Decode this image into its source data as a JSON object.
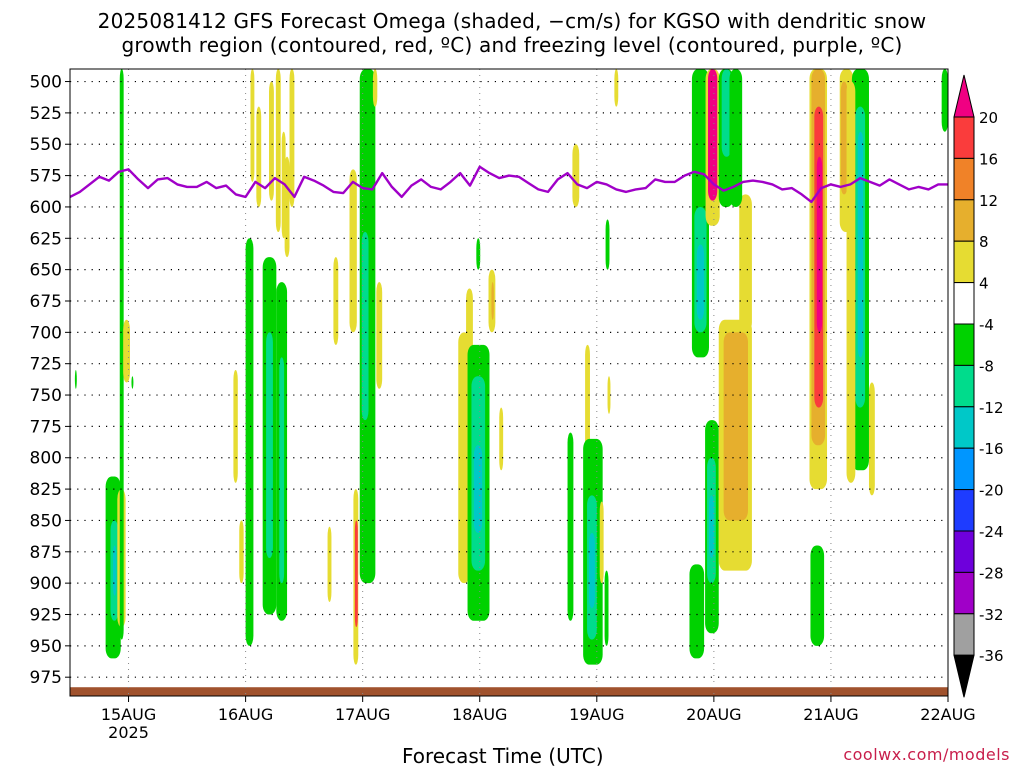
{
  "title_line1": "2025081412 GFS Forecast Omega (shaded, −cm/s) for KGSO with dendritic snow",
  "title_line2": "growth region (contoured, red, ºC) and freezing level (contoured, purple, ºC)",
  "credit": "coolwx.com/models",
  "chart_data": {
    "type": "heatmap",
    "xlabel": "Forecast Time (UTC)",
    "ylabel": "",
    "x_unit": "hours since 2025-08-14 12Z",
    "x_range": [
      0,
      180
    ],
    "x_ticks": [
      {
        "x": 12,
        "label": "15AUG",
        "sub": "2025"
      },
      {
        "x": 36,
        "label": "16AUG",
        "sub": ""
      },
      {
        "x": 60,
        "label": "17AUG",
        "sub": ""
      },
      {
        "x": 84,
        "label": "18AUG",
        "sub": ""
      },
      {
        "x": 108,
        "label": "19AUG",
        "sub": ""
      },
      {
        "x": 132,
        "label": "20AUG",
        "sub": ""
      },
      {
        "x": 156,
        "label": "21AUG",
        "sub": ""
      },
      {
        "x": 180,
        "label": "22AUG",
        "sub": ""
      }
    ],
    "y_levels": [
      500,
      525,
      550,
      575,
      600,
      625,
      650,
      675,
      700,
      725,
      750,
      775,
      800,
      825,
      850,
      875,
      900,
      925,
      950,
      975
    ],
    "y_range": [
      490,
      990
    ],
    "y_inverted": true,
    "grid": true,
    "colorbar": {
      "boundaries": [
        -36,
        -32,
        -28,
        -24,
        -20,
        -16,
        -12,
        -8,
        -4,
        4,
        8,
        12,
        16,
        20
      ],
      "labels": [
        "20",
        "16",
        "12",
        "8",
        "4",
        "-4",
        "-8",
        "-12",
        "-16",
        "-20",
        "-24",
        "-28",
        "-32",
        "-36"
      ],
      "colors": [
        "#000000",
        "#a0a0a0",
        "#a000c8",
        "#6e00dc",
        "#1e3cff",
        "#0096ff",
        "#00c8c8",
        "#00dc8c",
        "#00d200",
        "#ffffff",
        "#e6dc32",
        "#e6af2d",
        "#f08228",
        "#fa3c3c",
        "#f00082"
      ]
    },
    "shaded_regions": [
      {
        "t0": 7.3,
        "t1": 10.4,
        "p0": 815,
        "p1": 960,
        "color": "#00d200"
      },
      {
        "t0": 8.3,
        "t1": 9.9,
        "p0": 850,
        "p1": 930,
        "color": "#00dc8c"
      },
      {
        "t0": 8.8,
        "t1": 9.5,
        "p0": 870,
        "p1": 910,
        "color": "#00c8c8"
      },
      {
        "t0": 9.7,
        "t1": 11.4,
        "p0": 825,
        "p1": 935,
        "color": "#e6dc32"
      },
      {
        "t0": 10.2,
        "t1": 11.0,
        "p0": 490,
        "p1": 945,
        "color": "#00d200"
      },
      {
        "t0": 10.9,
        "t1": 12.3,
        "p0": 690,
        "p1": 740,
        "color": "#e6dc32"
      },
      {
        "t0": 12.6,
        "t1": 13.0,
        "p0": 735,
        "p1": 745,
        "color": "#00d200"
      },
      {
        "t0": 1.0,
        "t1": 1.4,
        "p0": 730,
        "p1": 745,
        "color": "#00d200"
      },
      {
        "t0": 37.0,
        "t1": 37.8,
        "p0": 490,
        "p1": 580,
        "color": "#e6dc32"
      },
      {
        "t0": 38.2,
        "t1": 39.2,
        "p0": 520,
        "p1": 600,
        "color": "#e6dc32"
      },
      {
        "t0": 40.8,
        "t1": 41.8,
        "p0": 500,
        "p1": 595,
        "color": "#e6dc32"
      },
      {
        "t0": 42.2,
        "t1": 43.2,
        "p0": 490,
        "p1": 620,
        "color": "#e6dc32"
      },
      {
        "t0": 43.4,
        "t1": 44.2,
        "p0": 540,
        "p1": 625,
        "color": "#e6dc32"
      },
      {
        "t0": 44.0,
        "t1": 45.0,
        "p0": 560,
        "p1": 640,
        "color": "#e6dc32"
      },
      {
        "t0": 36.0,
        "t1": 37.6,
        "p0": 625,
        "p1": 950,
        "color": "#00d200"
      },
      {
        "t0": 39.5,
        "t1": 42.3,
        "p0": 640,
        "p1": 925,
        "color": "#00d200"
      },
      {
        "t0": 40.2,
        "t1": 41.6,
        "p0": 700,
        "p1": 880,
        "color": "#00dc8c"
      },
      {
        "t0": 42.3,
        "t1": 44.5,
        "p0": 660,
        "p1": 930,
        "color": "#00d200"
      },
      {
        "t0": 42.9,
        "t1": 43.9,
        "p0": 720,
        "p1": 900,
        "color": "#00dc8c"
      },
      {
        "t0": 33.5,
        "t1": 34.4,
        "p0": 730,
        "p1": 820,
        "color": "#e6dc32"
      },
      {
        "t0": 34.7,
        "t1": 35.6,
        "p0": 850,
        "p1": 900,
        "color": "#e6dc32"
      },
      {
        "t0": 45.0,
        "t1": 46.0,
        "p0": 490,
        "p1": 600,
        "color": "#e6dc32"
      },
      {
        "t0": 57.3,
        "t1": 58.8,
        "p0": 570,
        "p1": 700,
        "color": "#e6dc32"
      },
      {
        "t0": 58.1,
        "t1": 59.1,
        "p0": 825,
        "p1": 965,
        "color": "#e6dc32"
      },
      {
        "t0": 58.4,
        "t1": 59.0,
        "p0": 850,
        "p1": 935,
        "color": "#fa3c3c"
      },
      {
        "t0": 59.4,
        "t1": 62.6,
        "p0": 490,
        "p1": 900,
        "color": "#00d200"
      },
      {
        "t0": 59.8,
        "t1": 61.2,
        "p0": 620,
        "p1": 770,
        "color": "#00dc8c"
      },
      {
        "t0": 62.1,
        "t1": 63.0,
        "p0": 490,
        "p1": 520,
        "color": "#e6dc32"
      },
      {
        "t0": 62.8,
        "t1": 64.0,
        "p0": 660,
        "p1": 745,
        "color": "#e6dc32"
      },
      {
        "t0": 54.0,
        "t1": 55.0,
        "p0": 640,
        "p1": 710,
        "color": "#e6dc32"
      },
      {
        "t0": 52.8,
        "t1": 53.6,
        "p0": 855,
        "p1": 915,
        "color": "#e6dc32"
      },
      {
        "t0": 79.6,
        "t1": 82.0,
        "p0": 700,
        "p1": 900,
        "color": "#e6dc32"
      },
      {
        "t0": 81.2,
        "t1": 82.6,
        "p0": 665,
        "p1": 770,
        "color": "#e6dc32"
      },
      {
        "t0": 81.5,
        "t1": 86.0,
        "p0": 710,
        "p1": 930,
        "color": "#00d200"
      },
      {
        "t0": 82.3,
        "t1": 85.1,
        "p0": 735,
        "p1": 890,
        "color": "#00dc8c"
      },
      {
        "t0": 82.8,
        "t1": 84.5,
        "p0": 790,
        "p1": 860,
        "color": "#00c8c8"
      },
      {
        "t0": 85.8,
        "t1": 87.2,
        "p0": 650,
        "p1": 700,
        "color": "#e6dc32"
      },
      {
        "t0": 86.4,
        "t1": 86.9,
        "p0": 660,
        "p1": 690,
        "color": "#e6af2d"
      },
      {
        "t0": 88.0,
        "t1": 88.8,
        "p0": 760,
        "p1": 810,
        "color": "#e6dc32"
      },
      {
        "t0": 83.3,
        "t1": 84.1,
        "p0": 625,
        "p1": 650,
        "color": "#00d200"
      },
      {
        "t0": 103.0,
        "t1": 104.4,
        "p0": 550,
        "p1": 600,
        "color": "#e6dc32"
      },
      {
        "t0": 105.6,
        "t1": 106.6,
        "p0": 710,
        "p1": 840,
        "color": "#e6dc32"
      },
      {
        "t0": 102.0,
        "t1": 103.2,
        "p0": 780,
        "p1": 930,
        "color": "#00d200"
      },
      {
        "t0": 105.2,
        "t1": 109.2,
        "p0": 785,
        "p1": 965,
        "color": "#00d200"
      },
      {
        "t0": 106.0,
        "t1": 108.0,
        "p0": 830,
        "p1": 945,
        "color": "#00dc8c"
      },
      {
        "t0": 106.4,
        "t1": 107.6,
        "p0": 860,
        "p1": 920,
        "color": "#00c8c8"
      },
      {
        "t0": 108.6,
        "t1": 109.4,
        "p0": 835,
        "p1": 900,
        "color": "#e6dc32"
      },
      {
        "t0": 109.8,
        "t1": 110.6,
        "p0": 610,
        "p1": 650,
        "color": "#00d200"
      },
      {
        "t0": 109.6,
        "t1": 110.4,
        "p0": 890,
        "p1": 950,
        "color": "#00d200"
      },
      {
        "t0": 110.2,
        "t1": 110.8,
        "p0": 735,
        "p1": 765,
        "color": "#e6dc32"
      },
      {
        "t0": 111.6,
        "t1": 112.4,
        "p0": 490,
        "p1": 520,
        "color": "#e6dc32"
      },
      {
        "t0": 127.5,
        "t1": 131.0,
        "p0": 480,
        "p1": 720,
        "color": "#00d200"
      },
      {
        "t0": 128.0,
        "t1": 130.5,
        "p0": 600,
        "p1": 700,
        "color": "#00dc8c"
      },
      {
        "t0": 128.5,
        "t1": 130.0,
        "p0": 630,
        "p1": 690,
        "color": "#00c8c8"
      },
      {
        "t0": 130.3,
        "t1": 133.2,
        "p0": 490,
        "p1": 615,
        "color": "#e6dc32"
      },
      {
        "t0": 130.8,
        "t1": 132.7,
        "p0": 490,
        "p1": 595,
        "color": "#f00082"
      },
      {
        "t0": 133.0,
        "t1": 136.0,
        "p0": 490,
        "p1": 600,
        "color": "#00d200"
      },
      {
        "t0": 133.6,
        "t1": 135.6,
        "p0": 490,
        "p1": 560,
        "color": "#00dc8c"
      },
      {
        "t0": 127.0,
        "t1": 130.0,
        "p0": 885,
        "p1": 960,
        "color": "#00d200"
      },
      {
        "t0": 130.2,
        "t1": 133.0,
        "p0": 770,
        "p1": 940,
        "color": "#00d200"
      },
      {
        "t0": 130.6,
        "t1": 132.4,
        "p0": 800,
        "p1": 900,
        "color": "#00dc8c"
      },
      {
        "t0": 131.0,
        "t1": 132.0,
        "p0": 830,
        "p1": 880,
        "color": "#00c8c8"
      },
      {
        "t0": 133.0,
        "t1": 139.8,
        "p0": 690,
        "p1": 890,
        "color": "#e6dc32"
      },
      {
        "t0": 134.0,
        "t1": 139.0,
        "p0": 700,
        "p1": 850,
        "color": "#e6af2d"
      },
      {
        "t0": 137.2,
        "t1": 139.8,
        "p0": 590,
        "p1": 700,
        "color": "#e6dc32"
      },
      {
        "t0": 135.2,
        "t1": 137.8,
        "p0": 490,
        "p1": 600,
        "color": "#00d200"
      },
      {
        "t0": 151.6,
        "t1": 155.2,
        "p0": 490,
        "p1": 825,
        "color": "#e6dc32"
      },
      {
        "t0": 152.0,
        "t1": 154.8,
        "p0": 490,
        "p1": 790,
        "color": "#e6af2d"
      },
      {
        "t0": 152.6,
        "t1": 154.4,
        "p0": 520,
        "p1": 760,
        "color": "#fa3c3c"
      },
      {
        "t0": 153.1,
        "t1": 154.2,
        "p0": 560,
        "p1": 700,
        "color": "#f00082"
      },
      {
        "t0": 151.8,
        "t1": 154.6,
        "p0": 870,
        "p1": 950,
        "color": "#00d200"
      },
      {
        "t0": 157.8,
        "t1": 160.6,
        "p0": 490,
        "p1": 620,
        "color": "#e6dc32"
      },
      {
        "t0": 158.0,
        "t1": 159.4,
        "p0": 500,
        "p1": 590,
        "color": "#e6af2d"
      },
      {
        "t0": 160.3,
        "t1": 163.8,
        "p0": 490,
        "p1": 810,
        "color": "#00d200"
      },
      {
        "t0": 161.0,
        "t1": 163.0,
        "p0": 520,
        "p1": 760,
        "color": "#00dc8c"
      },
      {
        "t0": 161.5,
        "t1": 162.6,
        "p0": 540,
        "p1": 720,
        "color": "#00c8c8"
      },
      {
        "t0": 163.8,
        "t1": 165.0,
        "p0": 740,
        "p1": 830,
        "color": "#e6dc32"
      },
      {
        "t0": 159.2,
        "t1": 161.0,
        "p0": 500,
        "p1": 820,
        "color": "#e6dc32"
      },
      {
        "t0": 178.7,
        "t1": 180.0,
        "p0": 490,
        "p1": 540,
        "color": "#00d200"
      }
    ],
    "freezing_level": {
      "color": "#a000c8",
      "t": [
        0,
        2,
        4,
        6,
        8,
        10,
        12,
        14,
        16,
        18,
        20,
        22,
        24,
        26,
        28,
        30,
        32,
        34,
        36,
        38,
        40,
        42,
        44,
        46,
        48,
        50,
        52,
        54,
        56,
        58,
        60,
        62,
        64,
        66,
        68,
        70,
        72,
        74,
        76,
        78,
        80,
        82,
        84,
        86,
        88,
        90,
        92,
        94,
        96,
        98,
        100,
        102,
        104,
        106,
        108,
        110,
        112,
        114,
        116,
        118,
        120,
        122,
        124,
        126,
        128,
        130,
        132,
        134,
        136,
        138,
        140,
        142,
        144,
        146,
        148,
        150,
        152,
        154,
        156,
        158,
        160,
        162,
        164,
        166,
        168,
        170,
        172,
        174,
        176,
        178,
        180
      ],
      "p": [
        592,
        588,
        582,
        576,
        579,
        572,
        570,
        578,
        585,
        578,
        577,
        582,
        584,
        584,
        580,
        585,
        583,
        590,
        592,
        580,
        585,
        577,
        582,
        592,
        576,
        579,
        583,
        588,
        589,
        580,
        585,
        586,
        573,
        584,
        592,
        583,
        578,
        584,
        586,
        580,
        573,
        583,
        568,
        573,
        577,
        575,
        576,
        581,
        586,
        588,
        578,
        573,
        582,
        585,
        580,
        582,
        586,
        588,
        586,
        585,
        578,
        580,
        580,
        575,
        572,
        574,
        582,
        587,
        584,
        580,
        579,
        580,
        582,
        586,
        585,
        590,
        596,
        585,
        582,
        584,
        582,
        577,
        580,
        583,
        578,
        582,
        586,
        584,
        586,
        582,
        582
      ]
    },
    "surface": {
      "color": "#a0522d",
      "p": 983
    }
  }
}
